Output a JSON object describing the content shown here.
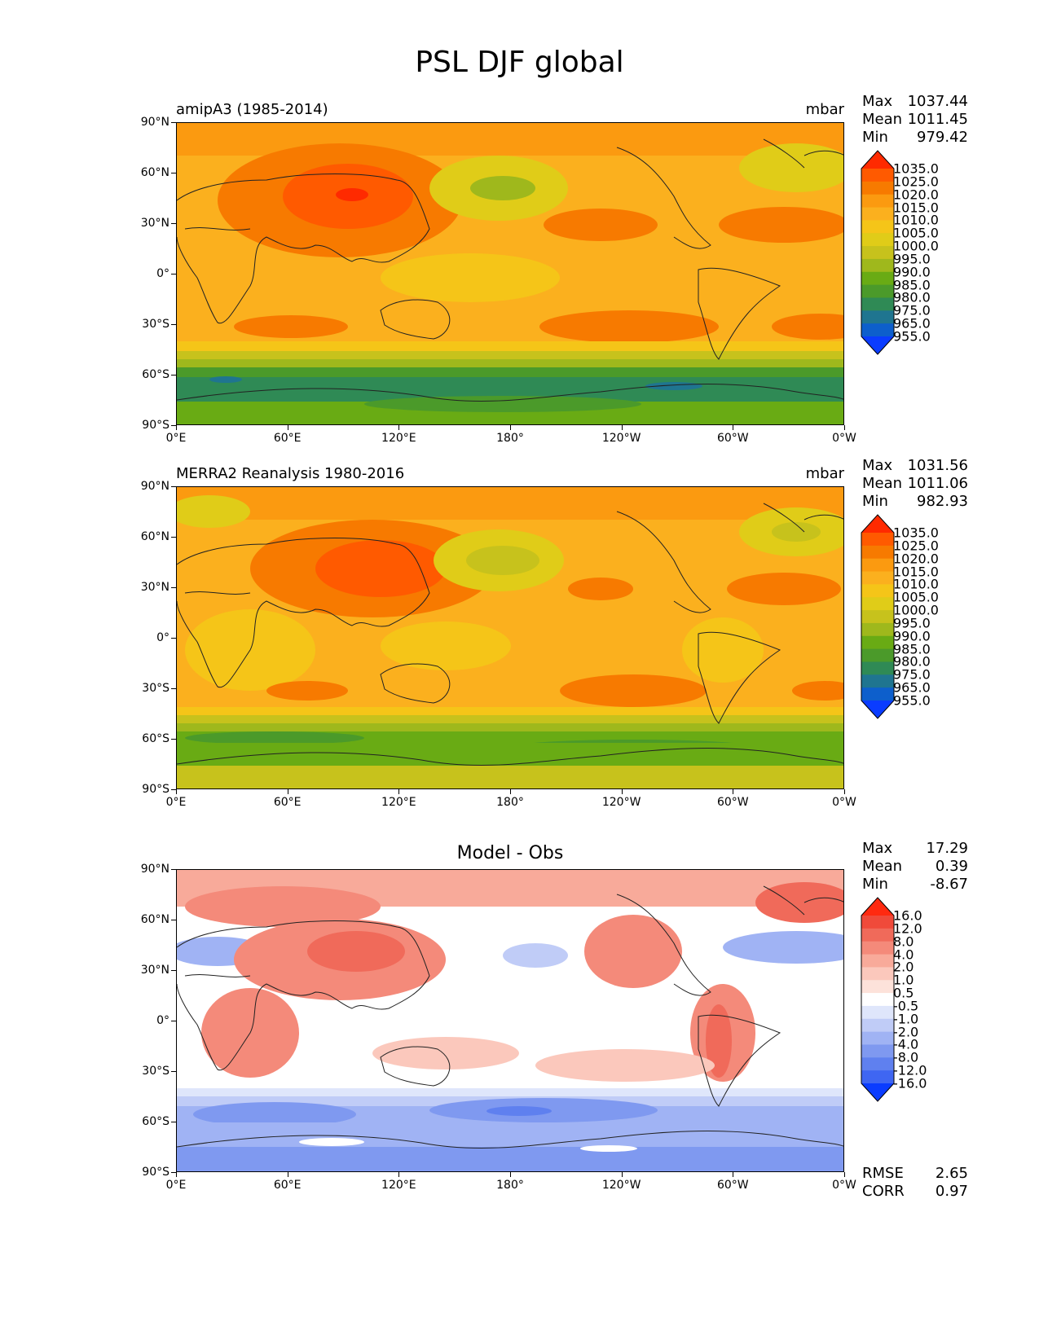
{
  "figure": {
    "title": "PSL DJF global",
    "lat_ticks": [
      "90°N",
      "60°N",
      "30°N",
      "0°",
      "30°S",
      "60°S",
      "90°S"
    ],
    "lon_ticks": [
      "0°E",
      "60°E",
      "120°E",
      "180°",
      "120°W",
      "60°W",
      "0°W"
    ]
  },
  "panels": [
    {
      "id": "model",
      "left_title": "amipA3 (1985-2014)",
      "center_title": "",
      "units": "mbar",
      "stats": [
        {
          "label": "Max",
          "value": "1037.44"
        },
        {
          "label": "Mean",
          "value": "1011.45"
        },
        {
          "label": "Min",
          "value": "979.42"
        }
      ],
      "colorbar": {
        "labels": [
          "1035.0",
          "1025.0",
          "1020.0",
          "1015.0",
          "1010.0",
          "1005.0",
          "1000.0",
          "995.0",
          "990.0",
          "985.0",
          "980.0",
          "975.0",
          "965.0",
          "955.0"
        ],
        "colors": [
          "#ff2a00",
          "#ff5a00",
          "#f77a00",
          "#fb9a10",
          "#fbb01e",
          "#f5c518",
          "#e0cc18",
          "#c7c21c",
          "#9fb81c",
          "#69ab14",
          "#4b9a2a",
          "#2f8a55",
          "#1f7590",
          "#0d5fcc",
          "#0a3cff"
        ]
      }
    },
    {
      "id": "obs",
      "left_title": "MERRA2 Reanalysis 1980-2016",
      "center_title": "",
      "units": "mbar",
      "stats": [
        {
          "label": "Max",
          "value": "1031.56"
        },
        {
          "label": "Mean",
          "value": "1011.06"
        },
        {
          "label": "Min",
          "value": "982.93"
        }
      ],
      "colorbar": {
        "labels": [
          "1035.0",
          "1025.0",
          "1020.0",
          "1015.0",
          "1010.0",
          "1005.0",
          "1000.0",
          "995.0",
          "990.0",
          "985.0",
          "980.0",
          "975.0",
          "965.0",
          "955.0"
        ],
        "colors": [
          "#ff2a00",
          "#ff5a00",
          "#f77a00",
          "#fb9a10",
          "#fbb01e",
          "#f5c518",
          "#e0cc18",
          "#c7c21c",
          "#9fb81c",
          "#69ab14",
          "#4b9a2a",
          "#2f8a55",
          "#1f7590",
          "#0d5fcc",
          "#0a3cff"
        ]
      }
    },
    {
      "id": "diff",
      "left_title": "",
      "center_title": "Model - Obs",
      "units": "",
      "stats": [
        {
          "label": "Max",
          "value": "17.29"
        },
        {
          "label": "Mean",
          "value": "0.39"
        },
        {
          "label": "Min",
          "value": "-8.67"
        }
      ],
      "colorbar": {
        "labels": [
          "16.0",
          "12.0",
          "8.0",
          "4.0",
          "2.0",
          "1.0",
          "0.5",
          "-0.5",
          "-1.0",
          "-2.0",
          "-4.0",
          "-8.0",
          "-12.0",
          "-16.0"
        ],
        "colors": [
          "#ff2a10",
          "#f04a3a",
          "#f06a5a",
          "#f48a7a",
          "#f8aa9a",
          "#fbc8bc",
          "#fde2da",
          "#ffffff",
          "#dfe6fb",
          "#c0ccf7",
          "#a0b3f4",
          "#7f99f0",
          "#5f80ef",
          "#3f66f2",
          "#0a3cff"
        ]
      }
    }
  ],
  "bottom_stats": [
    {
      "label": "RMSE",
      "value": "2.65"
    },
    {
      "label": "CORR",
      "value": "0.97"
    }
  ],
  "colors": {
    "coast": "#222222",
    "model_base": "#fbb01e",
    "obs_base": "#fbb01e",
    "diff_base": "#ffffff"
  }
}
